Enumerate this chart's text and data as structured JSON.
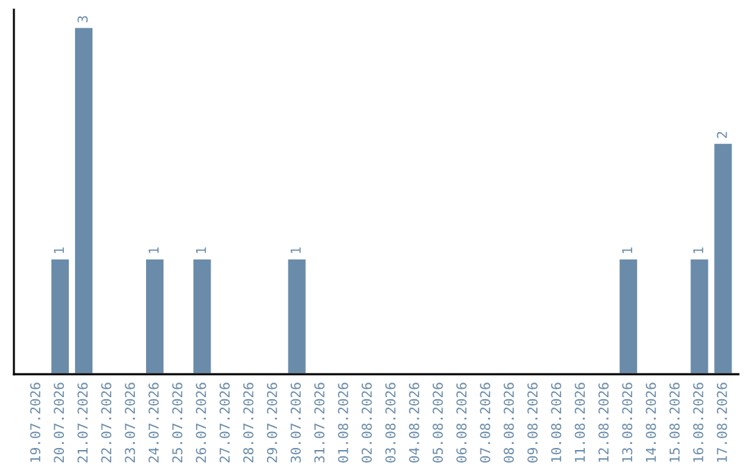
{
  "chart_data": {
    "type": "bar",
    "categories": [
      "19.07.2026",
      "20.07.2026",
      "21.07.2026",
      "22.07.2026",
      "23.07.2026",
      "24.07.2026",
      "25.07.2026",
      "26.07.2026",
      "27.07.2026",
      "28.07.2026",
      "29.07.2026",
      "30.07.2026",
      "31.07.2026",
      "01.08.2026",
      "02.08.2026",
      "03.08.2026",
      "04.08.2026",
      "05.08.2026",
      "06.08.2026",
      "07.08.2026",
      "08.08.2026",
      "09.08.2026",
      "10.08.2026",
      "11.08.2026",
      "12.08.2026",
      "13.08.2026",
      "14.08.2026",
      "15.08.2026",
      "16.08.2026",
      "17.08.2026"
    ],
    "values": [
      null,
      1,
      3,
      null,
      null,
      1,
      null,
      1,
      null,
      null,
      null,
      1,
      null,
      null,
      null,
      null,
      null,
      null,
      null,
      null,
      null,
      null,
      null,
      null,
      null,
      1,
      null,
      null,
      1,
      2
    ],
    "data_labels": true,
    "color": "#6a8caa",
    "grid": false,
    "legend": false,
    "tick_labels": "x"
  }
}
